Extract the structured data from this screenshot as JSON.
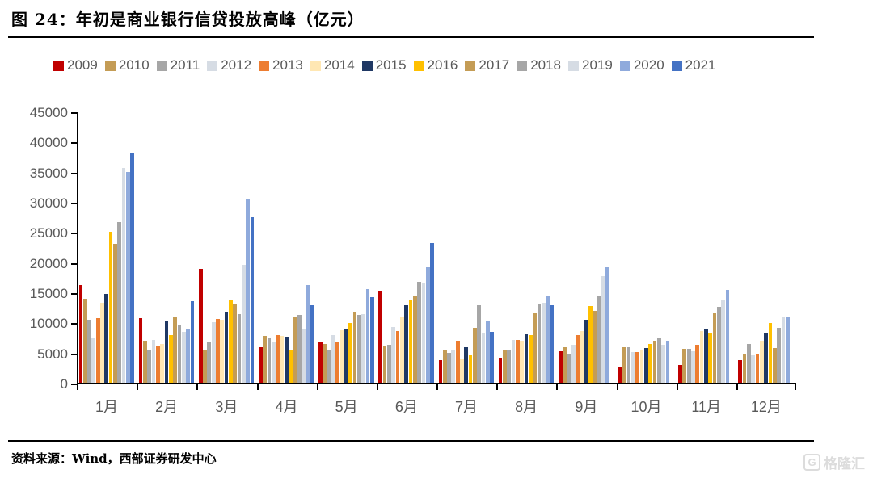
{
  "title": "图 24：年初是商业银行信贷投放高峰（亿元）",
  "footer": {
    "source_label": "资料来源：Wind，西部证券研发中心"
  },
  "watermark": {
    "text": "格隆汇",
    "icon": "gelonghui-g-icon"
  },
  "chart_data": {
    "type": "bar",
    "title": "年初是商业银行信贷投放高峰（亿元）",
    "unit": "亿元",
    "categories": [
      "1月",
      "2月",
      "3月",
      "4月",
      "5月",
      "6月",
      "7月",
      "8月",
      "9月",
      "10月",
      "11月",
      "12月"
    ],
    "series": [
      {
        "name": "2009",
        "color": "#C00000",
        "values": [
          16200,
          10700,
          18900,
          5900,
          6650,
          15300,
          3700,
          4100,
          5200,
          2500,
          2900,
          3800
        ]
      },
      {
        "name": "2010",
        "color": "#C49C55",
        "values": [
          13900,
          7000,
          5350,
          7750,
          6400,
          6050,
          5300,
          5450,
          5950,
          5900,
          5650,
          4800
        ]
      },
      {
        "name": "2011",
        "color": "#A6A6A6",
        "values": [
          10400,
          5350,
          6800,
          7400,
          5500,
          6350,
          4900,
          5500,
          4700,
          5850,
          5600,
          6400
        ]
      },
      {
        "name": "2012",
        "color": "#D6DCE4",
        "values": [
          7400,
          7100,
          10100,
          6800,
          7900,
          9200,
          5400,
          7050,
          6250,
          5050,
          5250,
          4550
        ]
      },
      {
        "name": "2013",
        "color": "#ED7D31",
        "values": [
          10700,
          6200,
          10600,
          7950,
          6700,
          8600,
          7000,
          7100,
          7850,
          5050,
          6250,
          4850
        ]
      },
      {
        "name": "2014",
        "color": "#FFE7B3",
        "values": [
          13200,
          6450,
          10500,
          7750,
          8700,
          10800,
          3850,
          7000,
          8550,
          5500,
          8550,
          6950
        ]
      },
      {
        "name": "2015",
        "color": "#1F3864",
        "values": [
          14700,
          10300,
          11800,
          7600,
          9000,
          12800,
          5900,
          8100,
          10400,
          5700,
          8950,
          8250
        ]
      },
      {
        "name": "2016",
        "color": "#FFC000",
        "values": [
          25100,
          7950,
          13700,
          5550,
          9850,
          13800,
          4600,
          7950,
          12700,
          6400,
          8350,
          9950
        ]
      },
      {
        "name": "2017",
        "color": "#C49C55",
        "values": [
          23100,
          11000,
          13100,
          11000,
          11600,
          14500,
          9100,
          11500,
          11900,
          6900,
          11500,
          5700
        ]
      },
      {
        "name": "2018",
        "color": "#A6A6A6",
        "values": [
          26700,
          9500,
          11400,
          11300,
          11300,
          16800,
          12900,
          13100,
          14500,
          7500,
          12600,
          9050
        ]
      },
      {
        "name": "2019",
        "color": "#D6DCE4",
        "values": [
          35600,
          8400,
          19600,
          8900,
          11400,
          16600,
          8200,
          13200,
          17700,
          6300,
          13700,
          10850
        ]
      },
      {
        "name": "2020",
        "color": "#8FAADC",
        "values": [
          35000,
          8800,
          30400,
          16200,
          15500,
          19100,
          10300,
          14300,
          19200,
          7000,
          15400,
          11000
        ]
      },
      {
        "name": "2021",
        "color": "#4472C4",
        "values": [
          38200,
          13500,
          27500,
          12800,
          14200,
          23200,
          8400,
          12800,
          null,
          null,
          null,
          null
        ]
      }
    ],
    "xlabel": "",
    "ylabel": "",
    "ylim": [
      0,
      45000
    ],
    "ytick_step": 5000,
    "ytick_labels": [
      "0",
      "5000",
      "10000",
      "15000",
      "20000",
      "25000",
      "30000",
      "35000",
      "40000",
      "45000"
    ],
    "legend_position": "top",
    "grid": false,
    "axis_color": "#000000",
    "tick_label_color": "#595959"
  }
}
